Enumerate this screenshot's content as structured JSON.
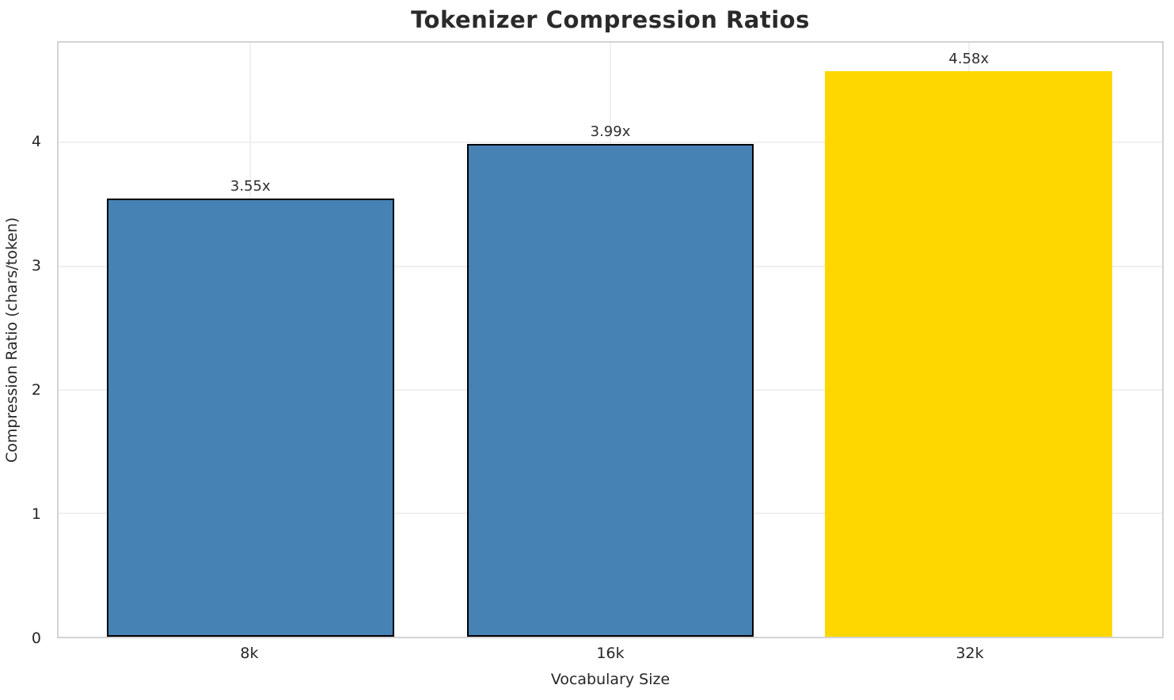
{
  "chart_data": {
    "type": "bar",
    "title": "Tokenizer Compression Ratios",
    "xlabel": "Vocabulary Size",
    "ylabel": "Compression Ratio (chars/token)",
    "categories": [
      "8k",
      "16k",
      "32k"
    ],
    "values": [
      3.55,
      3.99,
      4.58
    ],
    "bar_labels": [
      "3.55x",
      "3.99x",
      "4.58x"
    ],
    "colors": [
      "#4682B4",
      "#4682B4",
      "#FFD700"
    ],
    "edge_colors": [
      "#000000",
      "#000000",
      "#FFD700"
    ],
    "ylim": [
      0,
      4.81
    ],
    "yticks": [
      0,
      1,
      2,
      3,
      4
    ],
    "ytick_labels": [
      "0",
      "1",
      "2",
      "3",
      "4"
    ],
    "grid": "both",
    "grid_color": "#efefef",
    "spine_color": "#d3d3d3",
    "text_color": "#262626",
    "highlight_color": "#FFD700",
    "bar_color": "#4682B4"
  }
}
